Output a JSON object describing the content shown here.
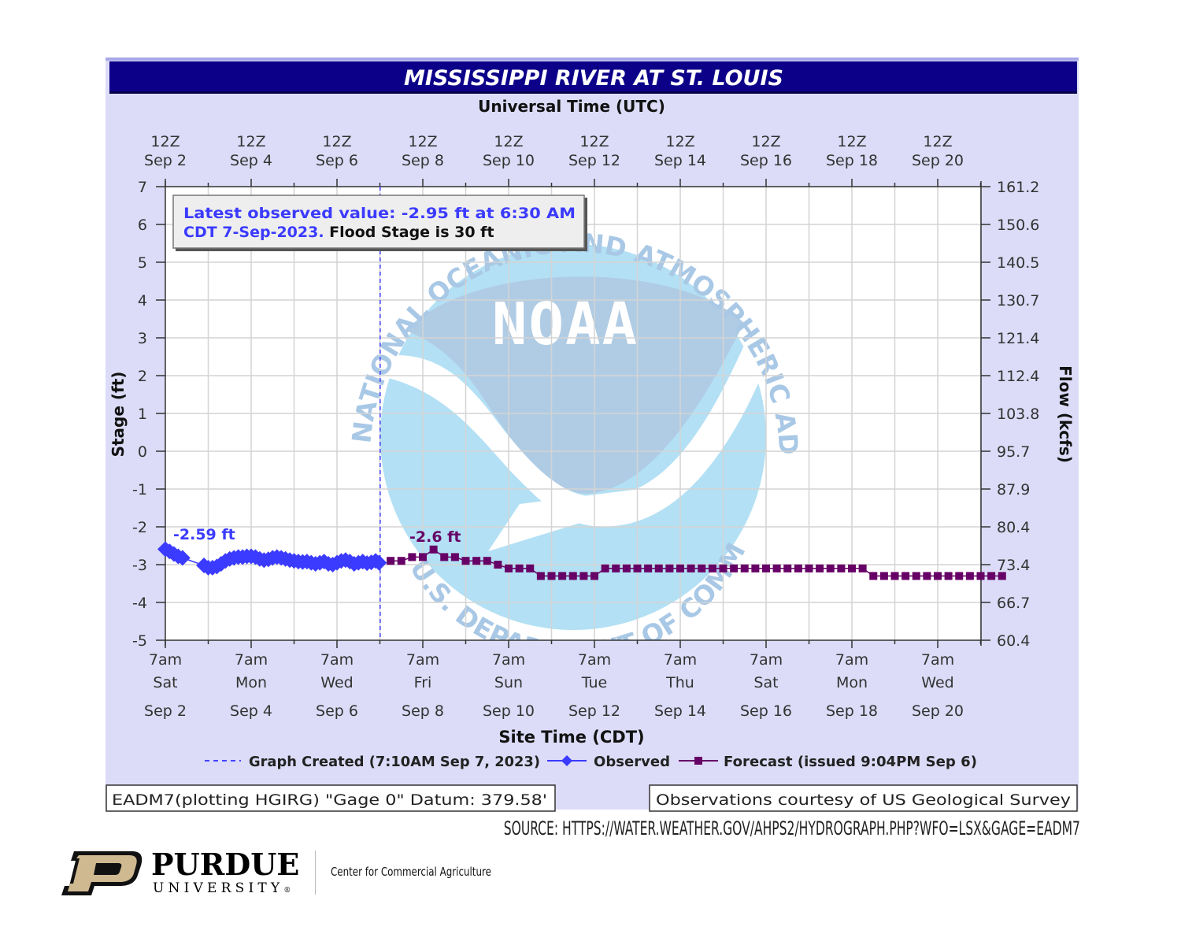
{
  "chart_data": {
    "type": "line",
    "title": "MISSISSIPPI RIVER AT ST. LOUIS",
    "top_axis_title": "Universal Time (UTC)",
    "top_ticks": [
      {
        "l1": "12Z",
        "l2": "Sep  2"
      },
      {
        "l1": "12Z",
        "l2": "Sep  4"
      },
      {
        "l1": "12Z",
        "l2": "Sep  6"
      },
      {
        "l1": "12Z",
        "l2": "Sep  8"
      },
      {
        "l1": "12Z",
        "l2": "Sep 10"
      },
      {
        "l1": "12Z",
        "l2": "Sep 12"
      },
      {
        "l1": "12Z",
        "l2": "Sep 14"
      },
      {
        "l1": "12Z",
        "l2": "Sep 16"
      },
      {
        "l1": "12Z",
        "l2": "Sep 18"
      },
      {
        "l1": "12Z",
        "l2": "Sep 20"
      }
    ],
    "bottom_axis_title": "Site Time (CDT)",
    "bottom_ticks": [
      {
        "l1": "7am",
        "l2": "Sat",
        "l3": "Sep 2"
      },
      {
        "l1": "7am",
        "l2": "Mon",
        "l3": "Sep 4"
      },
      {
        "l1": "7am",
        "l2": "Wed",
        "l3": "Sep 6"
      },
      {
        "l1": "7am",
        "l2": "Fri",
        "l3": "Sep 8"
      },
      {
        "l1": "7am",
        "l2": "Sun",
        "l3": "Sep 10"
      },
      {
        "l1": "7am",
        "l2": "Tue",
        "l3": "Sep 12"
      },
      {
        "l1": "7am",
        "l2": "Thu",
        "l3": "Sep 14"
      },
      {
        "l1": "7am",
        "l2": "Sat",
        "l3": "Sep 16"
      },
      {
        "l1": "7am",
        "l2": "Mon",
        "l3": "Sep 18"
      },
      {
        "l1": "7am",
        "l2": "Wed",
        "l3": "Sep 20"
      }
    ],
    "ylabel": "Stage (ft)",
    "ylim": [
      -5,
      7
    ],
    "yticks": [
      7,
      6,
      5,
      4,
      3,
      2,
      1,
      0,
      -1,
      -2,
      -3,
      -4,
      -5
    ],
    "y2label": "Flow (kcfs)",
    "y2ticks": [
      "161.2",
      "150.6",
      "140.5",
      "130.7",
      "121.4",
      "112.4",
      "103.8",
      "95.7",
      "87.9",
      "80.4",
      "73.4",
      "66.7",
      "60.4"
    ],
    "x_unit": "days since Sep 2 7am CDT",
    "xlim": [
      0,
      19.5
    ],
    "graph_created_x": 5.007,
    "grid": true,
    "legend_position": "bottom",
    "series": [
      {
        "name": "Observed",
        "color": "#3b3bff",
        "marker": "diamond",
        "peak_label": "-2.59 ft",
        "points": [
          [
            0.0,
            -2.59
          ],
          [
            0.1,
            -2.65
          ],
          [
            0.2,
            -2.72
          ],
          [
            0.3,
            -2.78
          ],
          [
            0.4,
            -2.82
          ],
          [
            0.9,
            -3.02
          ],
          [
            1.0,
            -3.08
          ],
          [
            1.1,
            -3.08
          ],
          [
            1.2,
            -3.05
          ],
          [
            1.3,
            -2.98
          ],
          [
            1.4,
            -2.9
          ],
          [
            1.5,
            -2.85
          ],
          [
            1.6,
            -2.82
          ],
          [
            1.7,
            -2.8
          ],
          [
            1.8,
            -2.8
          ],
          [
            1.9,
            -2.78
          ],
          [
            2.0,
            -2.78
          ],
          [
            2.1,
            -2.8
          ],
          [
            2.2,
            -2.85
          ],
          [
            2.3,
            -2.88
          ],
          [
            2.4,
            -2.86
          ],
          [
            2.5,
            -2.82
          ],
          [
            2.6,
            -2.8
          ],
          [
            2.7,
            -2.82
          ],
          [
            2.8,
            -2.85
          ],
          [
            2.9,
            -2.88
          ],
          [
            3.0,
            -2.9
          ],
          [
            3.1,
            -2.92
          ],
          [
            3.2,
            -2.93
          ],
          [
            3.3,
            -2.92
          ],
          [
            3.4,
            -2.95
          ],
          [
            3.5,
            -2.98
          ],
          [
            3.6,
            -2.95
          ],
          [
            3.7,
            -2.92
          ],
          [
            3.8,
            -2.98
          ],
          [
            3.9,
            -3.0
          ],
          [
            4.0,
            -2.95
          ],
          [
            4.1,
            -2.9
          ],
          [
            4.2,
            -2.88
          ],
          [
            4.3,
            -2.92
          ],
          [
            4.4,
            -2.98
          ],
          [
            4.5,
            -2.95
          ],
          [
            4.6,
            -2.92
          ],
          [
            4.7,
            -2.96
          ],
          [
            4.8,
            -2.94
          ],
          [
            4.9,
            -2.9
          ],
          [
            4.98,
            -2.95
          ]
        ]
      },
      {
        "name": "Forecast (issued 9:04PM Sep 6)",
        "color": "#660066",
        "marker": "square",
        "peak_label": "-2.6 ft",
        "points": [
          [
            5.25,
            -2.9
          ],
          [
            5.5,
            -2.9
          ],
          [
            5.75,
            -2.8
          ],
          [
            6.0,
            -2.8
          ],
          [
            6.25,
            -2.6
          ],
          [
            6.5,
            -2.8
          ],
          [
            6.75,
            -2.8
          ],
          [
            7.0,
            -2.9
          ],
          [
            7.25,
            -2.9
          ],
          [
            7.5,
            -2.9
          ],
          [
            7.75,
            -3.0
          ],
          [
            8.0,
            -3.1
          ],
          [
            8.25,
            -3.1
          ],
          [
            8.5,
            -3.1
          ],
          [
            8.75,
            -3.3
          ],
          [
            9.0,
            -3.3
          ],
          [
            9.25,
            -3.3
          ],
          [
            9.5,
            -3.3
          ],
          [
            9.75,
            -3.3
          ],
          [
            10.0,
            -3.3
          ],
          [
            10.25,
            -3.1
          ],
          [
            10.5,
            -3.1
          ],
          [
            10.75,
            -3.1
          ],
          [
            11.0,
            -3.1
          ],
          [
            11.25,
            -3.1
          ],
          [
            11.5,
            -3.1
          ],
          [
            11.75,
            -3.1
          ],
          [
            12.0,
            -3.1
          ],
          [
            12.25,
            -3.1
          ],
          [
            12.5,
            -3.1
          ],
          [
            12.75,
            -3.1
          ],
          [
            13.0,
            -3.1
          ],
          [
            13.25,
            -3.1
          ],
          [
            13.5,
            -3.1
          ],
          [
            13.75,
            -3.1
          ],
          [
            14.0,
            -3.1
          ],
          [
            14.25,
            -3.1
          ],
          [
            14.5,
            -3.1
          ],
          [
            14.75,
            -3.1
          ],
          [
            15.0,
            -3.1
          ],
          [
            15.25,
            -3.1
          ],
          [
            15.5,
            -3.1
          ],
          [
            15.75,
            -3.1
          ],
          [
            16.0,
            -3.1
          ],
          [
            16.25,
            -3.1
          ],
          [
            16.5,
            -3.3
          ],
          [
            16.75,
            -3.3
          ],
          [
            17.0,
            -3.3
          ],
          [
            17.25,
            -3.3
          ],
          [
            17.5,
            -3.3
          ],
          [
            17.75,
            -3.3
          ],
          [
            18.0,
            -3.3
          ],
          [
            18.25,
            -3.3
          ],
          [
            18.5,
            -3.3
          ],
          [
            18.75,
            -3.3
          ],
          [
            19.0,
            -3.3
          ],
          [
            19.25,
            -3.3
          ],
          [
            19.5,
            -3.3
          ]
        ]
      }
    ],
    "annotation": {
      "line1_blue": "Latest observed value: -2.95 ft at 6:30 AM",
      "line2_blue": "CDT 7-Sep-2023.",
      "line2_black": " Flood Stage is 30 ft"
    },
    "legend": {
      "graph_created": "Graph Created (7:10AM Sep 7, 2023)",
      "observed": "Observed",
      "forecast": "Forecast (issued 9:04PM Sep 6)"
    },
    "watermark": {
      "center_text": "NOAA",
      "ring_top": "NATIONAL OCEANIC AND ATMOSPHERIC ADMINISTRATION",
      "ring_bottom": "U.S. DEPARTMENT OF COMMERCE"
    },
    "footer_left": "EADM7(plotting HGIRG) \"Gage 0\" Datum: 379.58'",
    "footer_right": "Observations courtesy of US Geological Survey"
  },
  "colors": {
    "title_bar": "#0c0089",
    "panel_bg": "#dcdcf8",
    "observed": "#3b3bff",
    "forecast": "#660066",
    "grid": "#d4d4d4",
    "noaa_dark": "#b0cce4",
    "noaa_light": "#b3e0f4",
    "purdue_gold": "#cfb991"
  },
  "source_text": "SOURCE: HTTPS://WATER.WEATHER.GOV/AHPS2/HYDROGRAPH.PHP?WFO=LSX&GAGE=EADM7",
  "branding": {
    "wordmark_top": "PURDUE",
    "wordmark_bottom": "UNIVERSITY",
    "registered": "®",
    "center_name": "Center for Commercial Agriculture"
  }
}
